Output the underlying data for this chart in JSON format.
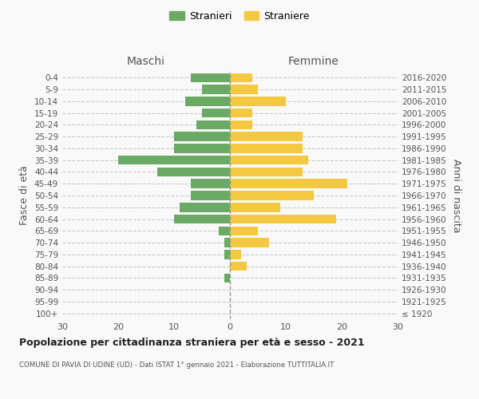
{
  "age_groups": [
    "100+",
    "95-99",
    "90-94",
    "85-89",
    "80-84",
    "75-79",
    "70-74",
    "65-69",
    "60-64",
    "55-59",
    "50-54",
    "45-49",
    "40-44",
    "35-39",
    "30-34",
    "25-29",
    "20-24",
    "15-19",
    "10-14",
    "5-9",
    "0-4"
  ],
  "birth_years": [
    "≤ 1920",
    "1921-1925",
    "1926-1930",
    "1931-1935",
    "1936-1940",
    "1941-1945",
    "1946-1950",
    "1951-1955",
    "1956-1960",
    "1961-1965",
    "1966-1970",
    "1971-1975",
    "1976-1980",
    "1981-1985",
    "1986-1990",
    "1991-1995",
    "1996-2000",
    "2001-2005",
    "2006-2010",
    "2011-2015",
    "2016-2020"
  ],
  "males": [
    0,
    0,
    0,
    1,
    0,
    1,
    1,
    2,
    10,
    9,
    7,
    7,
    13,
    20,
    10,
    10,
    6,
    5,
    8,
    5,
    7
  ],
  "females": [
    0,
    0,
    0,
    0,
    3,
    2,
    7,
    5,
    19,
    9,
    15,
    21,
    13,
    14,
    13,
    13,
    4,
    4,
    10,
    5,
    4
  ],
  "male_color": "#6aaa64",
  "female_color": "#f5c842",
  "background_color": "#f9f9f9",
  "grid_color": "#cccccc",
  "title": "Popolazione per cittadinanza straniera per età e sesso - 2021",
  "subtitle": "COMUNE DI PAVIA DI UDINE (UD) - Dati ISTAT 1° gennaio 2021 - Elaborazione TUTTITALIA.IT",
  "xlabel_left": "Maschi",
  "xlabel_right": "Femmine",
  "ylabel_left": "Fasce di età",
  "ylabel_right": "Anni di nascita",
  "xlim": 30,
  "legend_male": "Stranieri",
  "legend_female": "Straniere"
}
